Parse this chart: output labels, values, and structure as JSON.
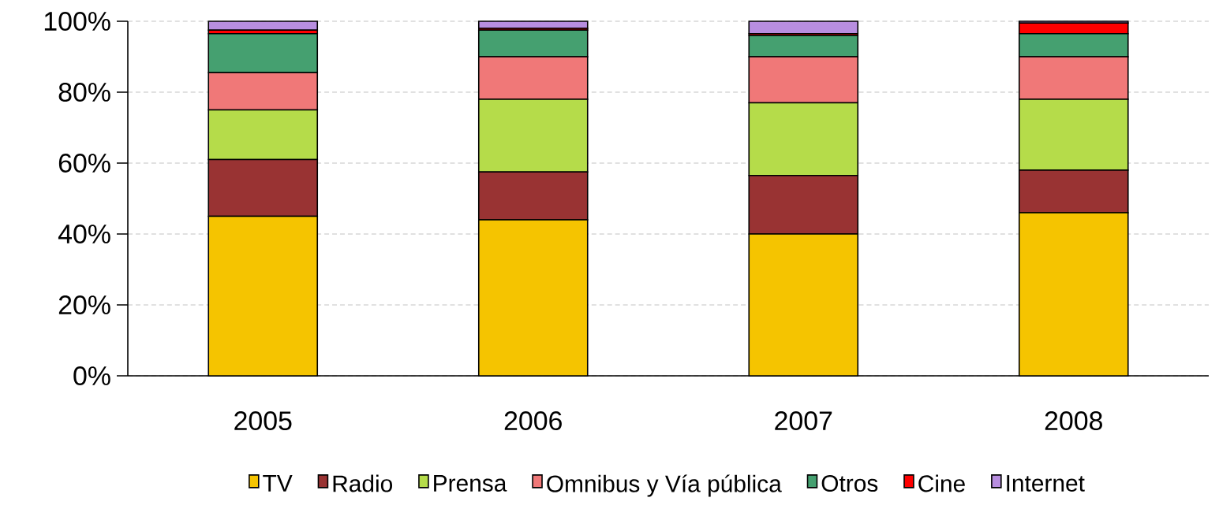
{
  "chart_data": {
    "type": "bar",
    "stacked": true,
    "categories": [
      "2005",
      "2006",
      "2007",
      "2008"
    ],
    "series": [
      {
        "name": "TV",
        "color": "#f5c400",
        "values": [
          45,
          44,
          40,
          46
        ]
      },
      {
        "name": "Radio",
        "color": "#993333",
        "values": [
          16,
          13.5,
          16.5,
          12
        ]
      },
      {
        "name": "Prensa",
        "color": "#b5dc4a",
        "values": [
          14,
          20.5,
          20.5,
          20
        ]
      },
      {
        "name": "Omnibus y Vía pública",
        "color": "#f07878",
        "values": [
          10.5,
          12,
          13,
          12
        ]
      },
      {
        "name": "Otros",
        "color": "#45a070",
        "values": [
          11,
          7.5,
          6,
          6.5
        ]
      },
      {
        "name": "Cine",
        "color": "#ff0000",
        "values": [
          1,
          0.5,
          0.5,
          3
        ]
      },
      {
        "name": "Internet",
        "color": "#b88ee0",
        "values": [
          2.5,
          2,
          3.5,
          0.5
        ]
      }
    ],
    "ylim": [
      0,
      100
    ],
    "yticks": [
      {
        "value": 0,
        "label": "0%"
      },
      {
        "value": 20,
        "label": "20%"
      },
      {
        "value": 40,
        "label": "40%"
      },
      {
        "value": 60,
        "label": "60%"
      },
      {
        "value": 80,
        "label": "80%"
      },
      {
        "value": 100,
        "label": "100%"
      }
    ],
    "grid": "y",
    "legend": "bottom"
  }
}
